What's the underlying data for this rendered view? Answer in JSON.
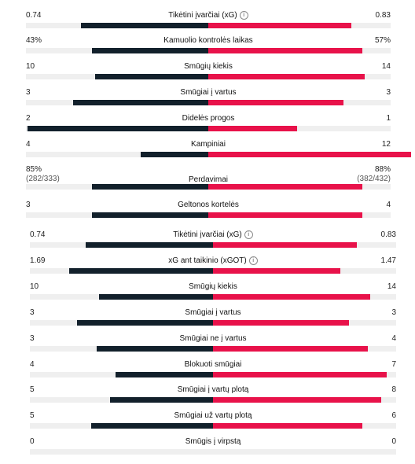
{
  "colors": {
    "home": "#12202b",
    "away": "#e8124a",
    "track": "#efefef"
  },
  "sections": [
    {
      "name": "overview",
      "rows": [
        {
          "label": "Tikėtini įvarčiai (xG)",
          "home": "0.74",
          "away": "0.83",
          "home_share": 0.47,
          "away_share": 0.53,
          "info": true
        },
        {
          "label": "Kamuolio kontrolės laikas",
          "home": "43%",
          "away": "57%",
          "home_share": 0.43,
          "away_share": 0.57
        },
        {
          "label": "Smūgių kiekis",
          "home": "10",
          "away": "14",
          "home_share": 0.42,
          "away_share": 0.58
        },
        {
          "label": "Smūgiai į vartus",
          "home": "3",
          "away": "3",
          "home_share": 0.5,
          "away_share": 0.5
        },
        {
          "label": "Didelės progos",
          "home": "2",
          "away": "1",
          "home_share": 0.67,
          "away_share": 0.33
        },
        {
          "label": "Kampiniai",
          "home": "4",
          "away": "12",
          "home_share": 0.25,
          "away_share": 0.75
        },
        {
          "label": "Perdavimai",
          "home": "85%",
          "home_sub": "(282/333)",
          "away": "88%",
          "away_sub": "(382/432)",
          "home_share": 0.43,
          "away_share": 0.57
        },
        {
          "label": "Geltonos kortelės",
          "home": "3",
          "away": "4",
          "home_share": 0.43,
          "away_share": 0.57
        }
      ]
    },
    {
      "name": "shots",
      "rows": [
        {
          "label": "Tikėtini įvarčiai (xG)",
          "home": "0.74",
          "away": "0.83",
          "home_share": 0.47,
          "away_share": 0.53,
          "info": true
        },
        {
          "label": "xG ant taikinio (xGOT)",
          "home": "1.69",
          "away": "1.47",
          "home_share": 0.53,
          "away_share": 0.47,
          "info": true
        },
        {
          "label": "Smūgių kiekis",
          "home": "10",
          "away": "14",
          "home_share": 0.42,
          "away_share": 0.58
        },
        {
          "label": "Smūgiai į vartus",
          "home": "3",
          "away": "3",
          "home_share": 0.5,
          "away_share": 0.5
        },
        {
          "label": "Smūgiai ne į vartus",
          "home": "3",
          "away": "4",
          "home_share": 0.43,
          "away_share": 0.57
        },
        {
          "label": "Blokuoti smūgiai",
          "home": "4",
          "away": "7",
          "home_share": 0.36,
          "away_share": 0.64
        },
        {
          "label": "Smūgiai į vartų plotą",
          "home": "5",
          "away": "8",
          "home_share": 0.38,
          "away_share": 0.62
        },
        {
          "label": "Smūgiai už vartų plotą",
          "home": "5",
          "away": "6",
          "home_share": 0.45,
          "away_share": 0.55
        },
        {
          "label": "Smūgis į virpstą",
          "home": "0",
          "away": "0",
          "home_share": 0,
          "away_share": 0
        }
      ]
    }
  ]
}
